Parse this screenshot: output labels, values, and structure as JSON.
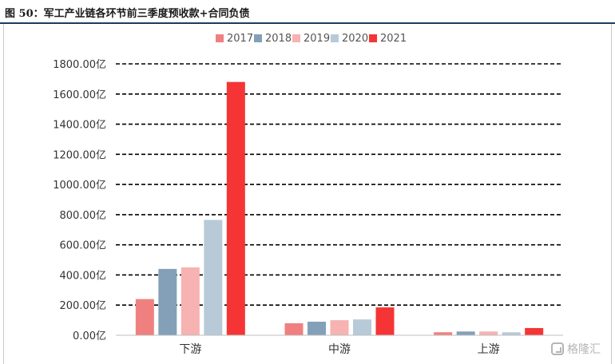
{
  "title": "图 50：军工产业链各环节前三季度预收款+合同负债",
  "watermark": "格隆汇",
  "chart_data": {
    "type": "bar",
    "categories": [
      "下游",
      "中游",
      "上游"
    ],
    "series": [
      {
        "name": "2017",
        "color": "#f08080",
        "values": [
          240,
          80,
          20
        ]
      },
      {
        "name": "2018",
        "color": "#84a0b8",
        "values": [
          440,
          90,
          25
        ]
      },
      {
        "name": "2019",
        "color": "#f7b2b2",
        "values": [
          450,
          100,
          25
        ]
      },
      {
        "name": "2020",
        "color": "#b8cad8",
        "values": [
          765,
          105,
          20
        ]
      },
      {
        "name": "2021",
        "color": "#f53535",
        "values": [
          1680,
          185,
          48
        ]
      }
    ],
    "ylim": [
      0,
      1800
    ],
    "yticks": [
      0,
      200,
      400,
      600,
      800,
      1000,
      1200,
      1400,
      1600,
      1800
    ],
    "ytick_labels": [
      "0.00亿",
      "200.00亿",
      "400.00亿",
      "600.00亿",
      "800.00亿",
      "1000.00亿",
      "1200.00亿",
      "1400.00亿",
      "1600.00亿",
      "1800.00亿"
    ],
    "grid": true,
    "legend": "top-center"
  }
}
